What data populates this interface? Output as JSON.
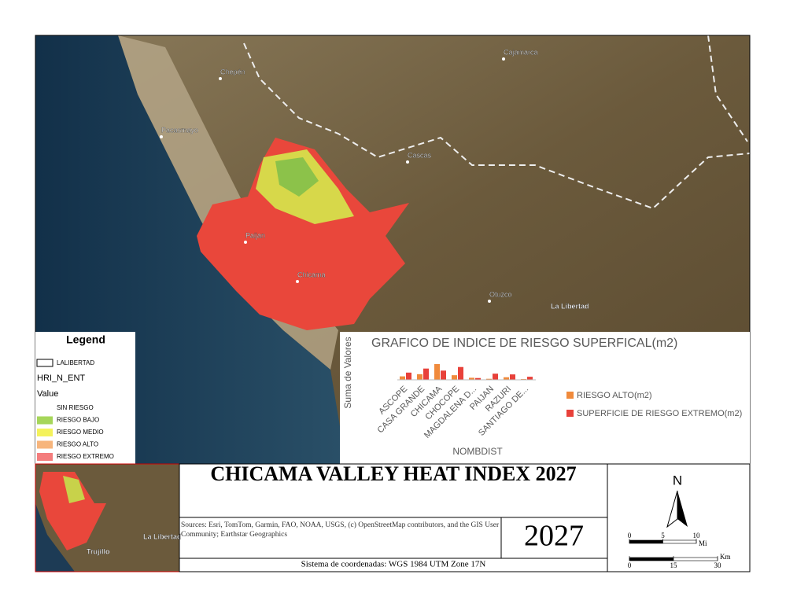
{
  "map": {
    "places": [
      "Cajamarca",
      "Chepén",
      "Pacasmayo",
      "Cascas",
      "Paijan",
      "Chicama",
      "Otuzco",
      "La Libertad"
    ]
  },
  "legend": {
    "title": "Legend",
    "boundary": "LALIBERTAD",
    "layer": "HRI_N_ENT",
    "field": "Value",
    "items": [
      {
        "label": "SIN RIESGO",
        "color": "#ffffff"
      },
      {
        "label": "RIESGO BAJO",
        "color": "#a6d65a"
      },
      {
        "label": "RIESGO MEDIO",
        "color": "#f4f25c"
      },
      {
        "label": "RIESGO ALTO",
        "color": "#f7b57c"
      },
      {
        "label": "RIESGO EXTREMO",
        "color": "#f47d7d"
      }
    ]
  },
  "chart_data": {
    "type": "bar",
    "title": "GRAFICO DE INDICE DE RIESGO SUPERFICAL(m2)",
    "y_label": "Suma de Valores",
    "x_label": "NOMBDIST",
    "categories": [
      "ASCOPE",
      "CASA GRANDE",
      "CHICAMA",
      "CHOCOPE",
      "MAGDALENA D...",
      "PAIJAN",
      "RAZURI",
      "SANTIAGO DE..."
    ],
    "series": [
      {
        "name": "RIESGO ALTO(m2)",
        "color": "#f08a3c",
        "values": [
          6764400,
          11000000,
          30718880,
          9000000,
          4000000,
          2000000,
          5000000,
          1500000
        ]
      },
      {
        "name": "SUPERFICIE DE RIESGO EXTREMO(m2)",
        "color": "#e8413a",
        "values": [
          14100000,
          22000000,
          18000000,
          25000000,
          3500000,
          12000000,
          10558300,
          6000000
        ]
      }
    ]
  },
  "title": "CHICAMA VALLEY HEAT INDEX 2027",
  "sources": "Sources:  Esri, TomTom, Garmin, FAO, NOAA, USGS, (c) OpenStreetMap contributors, and the GIS User Community; Earthstar Geographics",
  "year": "2027",
  "coordinates": "Sistema de coordenadas: WGS 1984 UTM Zone 17N",
  "inset": {
    "places": [
      "La Libertad",
      "Trujillo"
    ]
  },
  "north": "N",
  "scale": {
    "mi": {
      "unit": "Mi",
      "ticks": [
        0,
        5,
        10
      ]
    },
    "km": {
      "unit": "Km",
      "ticks": [
        0,
        15,
        30
      ]
    }
  }
}
